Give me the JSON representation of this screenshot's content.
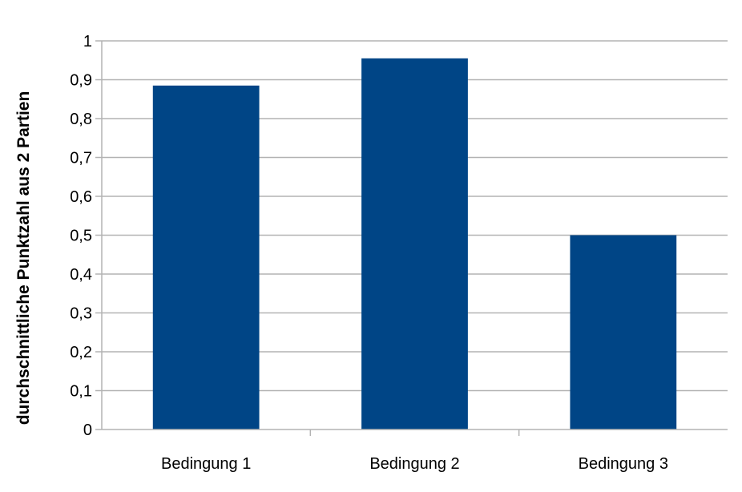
{
  "chart_data": {
    "type": "bar",
    "title": "",
    "xlabel": "",
    "ylabel": "durchschnittliche Punktzahl aus 2 Partien",
    "categories": [
      "Bedingung 1",
      "Bedingung 2",
      "Bedingung 3"
    ],
    "values": [
      0.885,
      0.955,
      0.5
    ],
    "ylim": [
      0,
      1
    ],
    "yticks": [
      "0",
      "0,1",
      "0,2",
      "0,3",
      "0,4",
      "0,5",
      "0,6",
      "0,7",
      "0,8",
      "0,9",
      "1"
    ],
    "grid": true,
    "legend": "none",
    "bar_color": "#004586",
    "grid_color": "#b3b3b3"
  }
}
